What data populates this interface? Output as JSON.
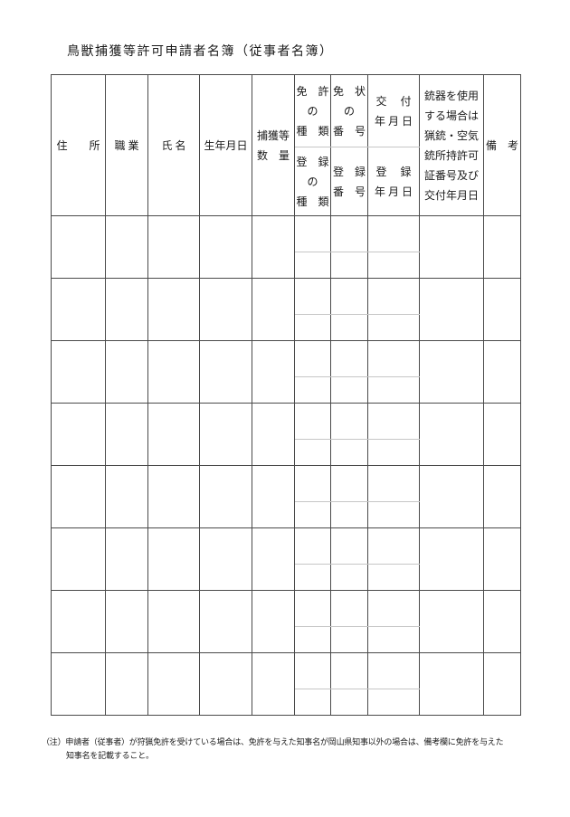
{
  "page": {
    "title": "鳥獣捕獲等許可申請者名簿（従事者名簿）",
    "note": {
      "line1": "（注）申請者（従事者）が狩猟免許を受けている場合は、免許を与えた知事名が岡山県知事以外の場合は、備考欄に免許を与えた",
      "line2": "知事名を記載すること。"
    }
  },
  "table": {
    "body_row_count": 8,
    "header": {
      "address": "住　　所",
      "occupation": "職 業",
      "name": "氏 名",
      "birthdate": "生年月日",
      "capture_quantity": "捕獲等\n数　量",
      "license_type": "免　許\nの\n種　類",
      "registration_type": "登　録\nの\n種　類",
      "license_number": "免　状\nの\n番　号",
      "registration_number": "登　録\n番　号",
      "issue_date": "交　 付\n年 月 日",
      "registration_date": "登　 録\n年 月 日",
      "firearm_info": "銃器を使用\nする場合は\n猟銃・空気\n銃所持許可\n証番号及び\n交付年月日",
      "remarks": "備　考"
    }
  },
  "colors": {
    "line": "#4a4a4a",
    "light_line": "#c6c6c6",
    "text": "#1a1a1a",
    "background": "#ffffff"
  }
}
